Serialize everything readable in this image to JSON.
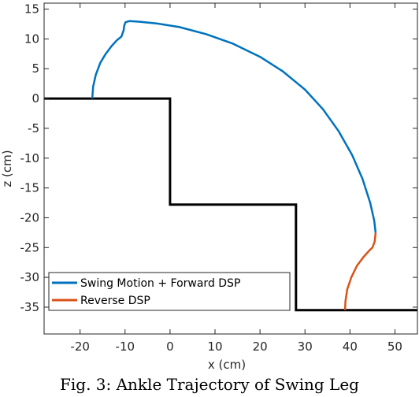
{
  "caption": "Fig. 3: Ankle Trajectory of Swing Leg",
  "chart_data": {
    "type": "line",
    "xlabel": "x (cm)",
    "ylabel": "z (cm)",
    "xlim": [
      -28,
      55
    ],
    "ylim": [
      -39.5,
      16
    ],
    "xticks": [
      -20,
      -10,
      0,
      10,
      20,
      30,
      40,
      50
    ],
    "yticks": [
      15,
      10,
      5,
      0,
      -5,
      -10,
      -15,
      -20,
      -25,
      -30,
      -35
    ],
    "grid": false,
    "legend_position": "bottom-left",
    "ground": {
      "name": "",
      "color": "#000000",
      "x": [
        -28,
        0,
        0,
        28,
        28,
        55
      ],
      "y": [
        0,
        0,
        -17.8,
        -17.8,
        -35.5,
        -35.5
      ]
    },
    "series": [
      {
        "name": "Swing Motion + Forward DSP",
        "color": "#0072BD",
        "x": [
          -17.3,
          -17.1,
          -16.5,
          -15.5,
          -14.3,
          -13.0,
          -11.8,
          -10.8,
          -10.3,
          -10.2,
          -9.9,
          -9.0,
          -7.0,
          -3.0,
          2.0,
          8.0,
          14.0,
          20.0,
          25.0,
          30.0,
          34.0,
          37.5,
          40.5,
          42.8,
          44.5,
          45.4,
          45.7
        ],
        "y": [
          0.0,
          2.0,
          4.0,
          6.0,
          7.5,
          8.8,
          9.8,
          10.4,
          11.5,
          12.2,
          12.8,
          13.0,
          12.9,
          12.6,
          12.0,
          10.8,
          9.2,
          7.0,
          4.6,
          1.5,
          -1.8,
          -5.5,
          -9.5,
          -13.5,
          -17.5,
          -20.5,
          -22.5
        ]
      },
      {
        "name": "Reverse DSP",
        "color": "#D95319",
        "x": [
          45.7,
          45.5,
          45.0,
          44.3,
          43.0,
          41.6,
          40.3,
          39.4,
          39.0,
          38.9
        ],
        "y": [
          -22.5,
          -24.0,
          -25.0,
          -25.5,
          -26.6,
          -28.0,
          -30.0,
          -32.0,
          -34.0,
          -35.5
        ]
      }
    ]
  }
}
